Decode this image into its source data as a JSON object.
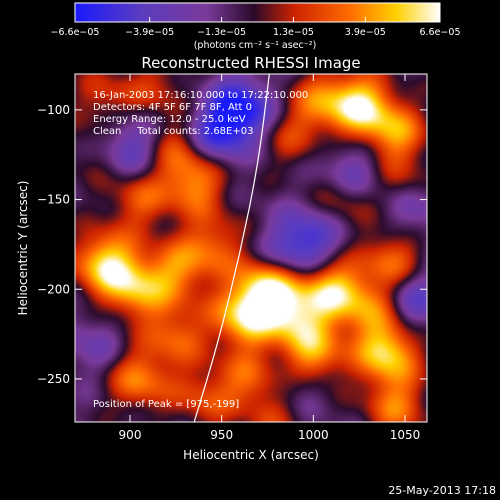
{
  "chart_data": {
    "type": "heatmap",
    "title": "Reconstructed RHESSI Image",
    "xlabel": "Heliocentric X (arcsec)",
    "ylabel": "Heliocentric Y (arcsec)",
    "xlim": [
      870,
      1062
    ],
    "ylim": [
      -274,
      -80
    ],
    "xticks": [
      900,
      950,
      1000,
      1050
    ],
    "xtick_labels": [
      "900",
      "950",
      "1000",
      "1050"
    ],
    "yticks": [
      -100,
      -150,
      -200,
      -250
    ],
    "ytick_labels": [
      "−100",
      "−150",
      "−200",
      "−250"
    ],
    "colorbar": {
      "range": [
        -6.6e-05,
        6.6e-05
      ],
      "ticks": [
        -6.6e-05,
        -3.9e-05,
        -1.3e-05,
        1.3e-05,
        3.9e-05,
        6.6e-05
      ],
      "tick_labels": [
        "−6.6e−05",
        "−3.9e−05",
        "−1.3e−05",
        "1.3e−05",
        "3.9e−05",
        "6.6e−05"
      ],
      "unit_label": "(photons cm⁻² s⁻¹ asec⁻²)",
      "colors": [
        "#1a1aff",
        "#5a3cc0",
        "#7a3a9a",
        "#2a0a2a",
        "#cc2200",
        "#ff6a00",
        "#ffd000",
        "#ffffff"
      ]
    },
    "annotations": [
      "16-Jan-2003 17:16:10.000 to 17:22:10.000",
      "Detectors: 4F 5F 6F 7F 8F, Att 0",
      "Energy Range: 12.0 - 25.0 keV",
      "Clean     Total counts: 2.68E+03"
    ],
    "peak_label": "Position of Peak = [975,-199]",
    "peak": [
      975,
      -199
    ],
    "limb_curve": [
      [
        935,
        -274
      ],
      [
        948,
        -230
      ],
      [
        960,
        -180
      ],
      [
        970,
        -130
      ],
      [
        976,
        -80
      ]
    ],
    "blobs": [
      {
        "x": 1025,
        "y": -97,
        "v": 0.95
      },
      {
        "x": 1044,
        "y": -112,
        "v": 0.7
      },
      {
        "x": 1004,
        "y": -95,
        "v": 0.55
      },
      {
        "x": 987,
        "y": -115,
        "v": 0.35
      },
      {
        "x": 886,
        "y": -93,
        "v": 0.4
      },
      {
        "x": 915,
        "y": -87,
        "v": 0.35
      },
      {
        "x": 935,
        "y": -140,
        "v": 0.7
      },
      {
        "x": 905,
        "y": -150,
        "v": 0.5
      },
      {
        "x": 925,
        "y": -120,
        "v": 0.45
      },
      {
        "x": 886,
        "y": -185,
        "v": 0.95
      },
      {
        "x": 903,
        "y": -200,
        "v": 0.75
      },
      {
        "x": 925,
        "y": -190,
        "v": 0.6
      },
      {
        "x": 945,
        "y": -175,
        "v": 0.55
      },
      {
        "x": 975,
        "y": -199,
        "v": 1.0
      },
      {
        "x": 962,
        "y": -215,
        "v": 0.9
      },
      {
        "x": 990,
        "y": -215,
        "v": 0.75
      },
      {
        "x": 1010,
        "y": -200,
        "v": 0.85
      },
      {
        "x": 1043,
        "y": -183,
        "v": 0.6
      },
      {
        "x": 1030,
        "y": -210,
        "v": 0.55
      },
      {
        "x": 1040,
        "y": -235,
        "v": 0.95
      },
      {
        "x": 1000,
        "y": -237,
        "v": 0.75
      },
      {
        "x": 965,
        "y": -250,
        "v": 0.5
      },
      {
        "x": 925,
        "y": -225,
        "v": 0.55
      },
      {
        "x": 905,
        "y": -250,
        "v": 0.65
      },
      {
        "x": 940,
        "y": -260,
        "v": 0.45
      },
      {
        "x": 980,
        "y": -270,
        "v": 0.4
      },
      {
        "x": 1045,
        "y": -265,
        "v": 0.6
      },
      {
        "x": 1015,
        "y": -150,
        "v": 0.45
      },
      {
        "x": 1050,
        "y": -140,
        "v": 0.35
      },
      {
        "x": 880,
        "y": -125,
        "v": 0.2
      },
      {
        "x": 960,
        "y": -100,
        "v": -0.9
      },
      {
        "x": 945,
        "y": -115,
        "v": -0.6
      },
      {
        "x": 900,
        "y": -120,
        "v": -0.55
      },
      {
        "x": 1000,
        "y": -170,
        "v": -0.55
      },
      {
        "x": 1055,
        "y": -205,
        "v": -0.5
      },
      {
        "x": 1020,
        "y": -135,
        "v": -0.5
      },
      {
        "x": 985,
        "y": -180,
        "v": -0.45
      },
      {
        "x": 880,
        "y": -230,
        "v": -0.3
      },
      {
        "x": 990,
        "y": -255,
        "v": -0.35
      },
      {
        "x": 1055,
        "y": -155,
        "v": -0.4
      }
    ]
  },
  "footer": {
    "timestamp": "25-May-2013 17:18"
  }
}
